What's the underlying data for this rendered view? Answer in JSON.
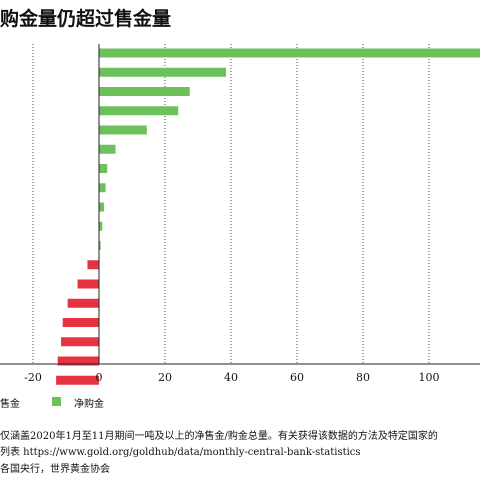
{
  "title": "购金量仍超过售金量",
  "chart_data": {
    "type": "bar",
    "orientation": "horizontal",
    "values": [
      118,
      38.5,
      27.5,
      24,
      14.5,
      5,
      2.5,
      2,
      1.5,
      1,
      0.5,
      -3.5,
      -6.5,
      -9.5,
      -11,
      -11.5,
      -12.5,
      -13
    ],
    "category_labels_visible": false,
    "xlim": [
      -30,
      115
    ],
    "x_ticks": [
      -20,
      0,
      20,
      40,
      60,
      80,
      100
    ],
    "x_tick_labels": [
      "-20",
      "0",
      "20",
      "40",
      "60",
      "80",
      "100"
    ],
    "grid": "vertical dotted",
    "legend": [
      {
        "name": "售金",
        "color": "#e53342"
      },
      {
        "name": "净购金",
        "color": "#6cc15d"
      }
    ],
    "colors": {
      "positive": "#6cc15d",
      "negative": "#e53342"
    }
  },
  "notes": {
    "line1": "仅涵盖2020年1月至11月期间一吨及以上的净售金/购金总量。有关获得该数据的方法及特定国家的",
    "line2": "列表 https://www.gold.org/goldhub/data/monthly-central-bank-statistics",
    "source": "各国央行，世界黄金协会"
  }
}
